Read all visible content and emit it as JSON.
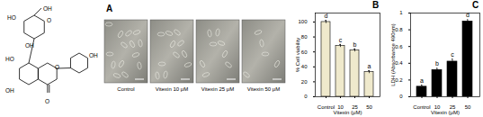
{
  "structure": {
    "labels": [
      "OH",
      "HO",
      "OH",
      "O",
      "HO",
      "OH",
      "O",
      "O",
      "OH"
    ]
  },
  "images": {
    "label": "A",
    "captions": [
      "Control",
      "Vitexin 10 μM",
      "Vitexin 25 μM",
      "Vitexin 50 μM"
    ]
  },
  "chart_data": [
    {
      "type": "bar",
      "title": "B",
      "categories": [
        "Control",
        "10",
        "25",
        "50"
      ],
      "values": [
        100,
        68,
        62,
        33
      ],
      "errors": [
        2,
        2,
        2,
        2
      ],
      "annotations": [
        "d",
        "c",
        "b",
        "a"
      ],
      "color": "#efe9cc",
      "xlabel": "Vitexin (μM)",
      "ylabel": "% Cell viability",
      "ylim": [
        0,
        112
      ],
      "yticks": [
        0,
        20,
        40,
        60,
        80,
        100
      ],
      "grid": false
    },
    {
      "type": "bar",
      "title": "C",
      "categories": [
        "Control",
        "10",
        "25",
        "50"
      ],
      "values": [
        0.12,
        0.32,
        0.42,
        0.9
      ],
      "errors": [
        0.02,
        0.02,
        0.03,
        0.02
      ],
      "annotations": [
        "a",
        "b",
        "c",
        "d"
      ],
      "color": "#000000",
      "xlabel": "Vitexin (μM)",
      "ylabel": "LDH (Absorbance 490nm)",
      "ylim": [
        0,
        1
      ],
      "yticks": [
        0,
        0.2,
        0.4,
        0.6,
        0.8,
        1
      ],
      "grid": false
    }
  ]
}
